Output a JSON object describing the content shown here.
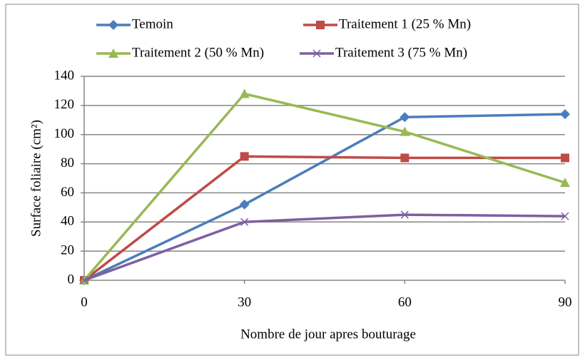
{
  "chart_data": {
    "type": "line",
    "x": [
      0,
      30,
      60,
      90
    ],
    "xlabel": "Nombre de jour apres bouturage",
    "ylabel": "Surface foliaire (cm²)",
    "series": [
      {
        "name": "Temoin",
        "color": "#4a7ebb",
        "marker": "diamond",
        "values": [
          0,
          52,
          112,
          114
        ]
      },
      {
        "name": "Traitement 1 (25 % Mn)",
        "color": "#be4b48",
        "marker": "square",
        "values": [
          0,
          85,
          84,
          84
        ]
      },
      {
        "name": "Traitement 2 (50 % Mn)",
        "color": "#98b954",
        "marker": "triangle",
        "values": [
          0,
          128,
          102,
          67
        ]
      },
      {
        "name": "Traitement 3 (75 % Mn)",
        "color": "#7d60a0",
        "marker": "x",
        "values": [
          0,
          40,
          45,
          44
        ]
      }
    ],
    "xlim": [
      0,
      90
    ],
    "xticks": [
      0,
      30,
      60,
      90
    ],
    "ylim": [
      0,
      140
    ],
    "yticks": [
      0,
      20,
      40,
      60,
      80,
      100,
      120,
      140
    ],
    "grid": true,
    "legend": "top"
  }
}
